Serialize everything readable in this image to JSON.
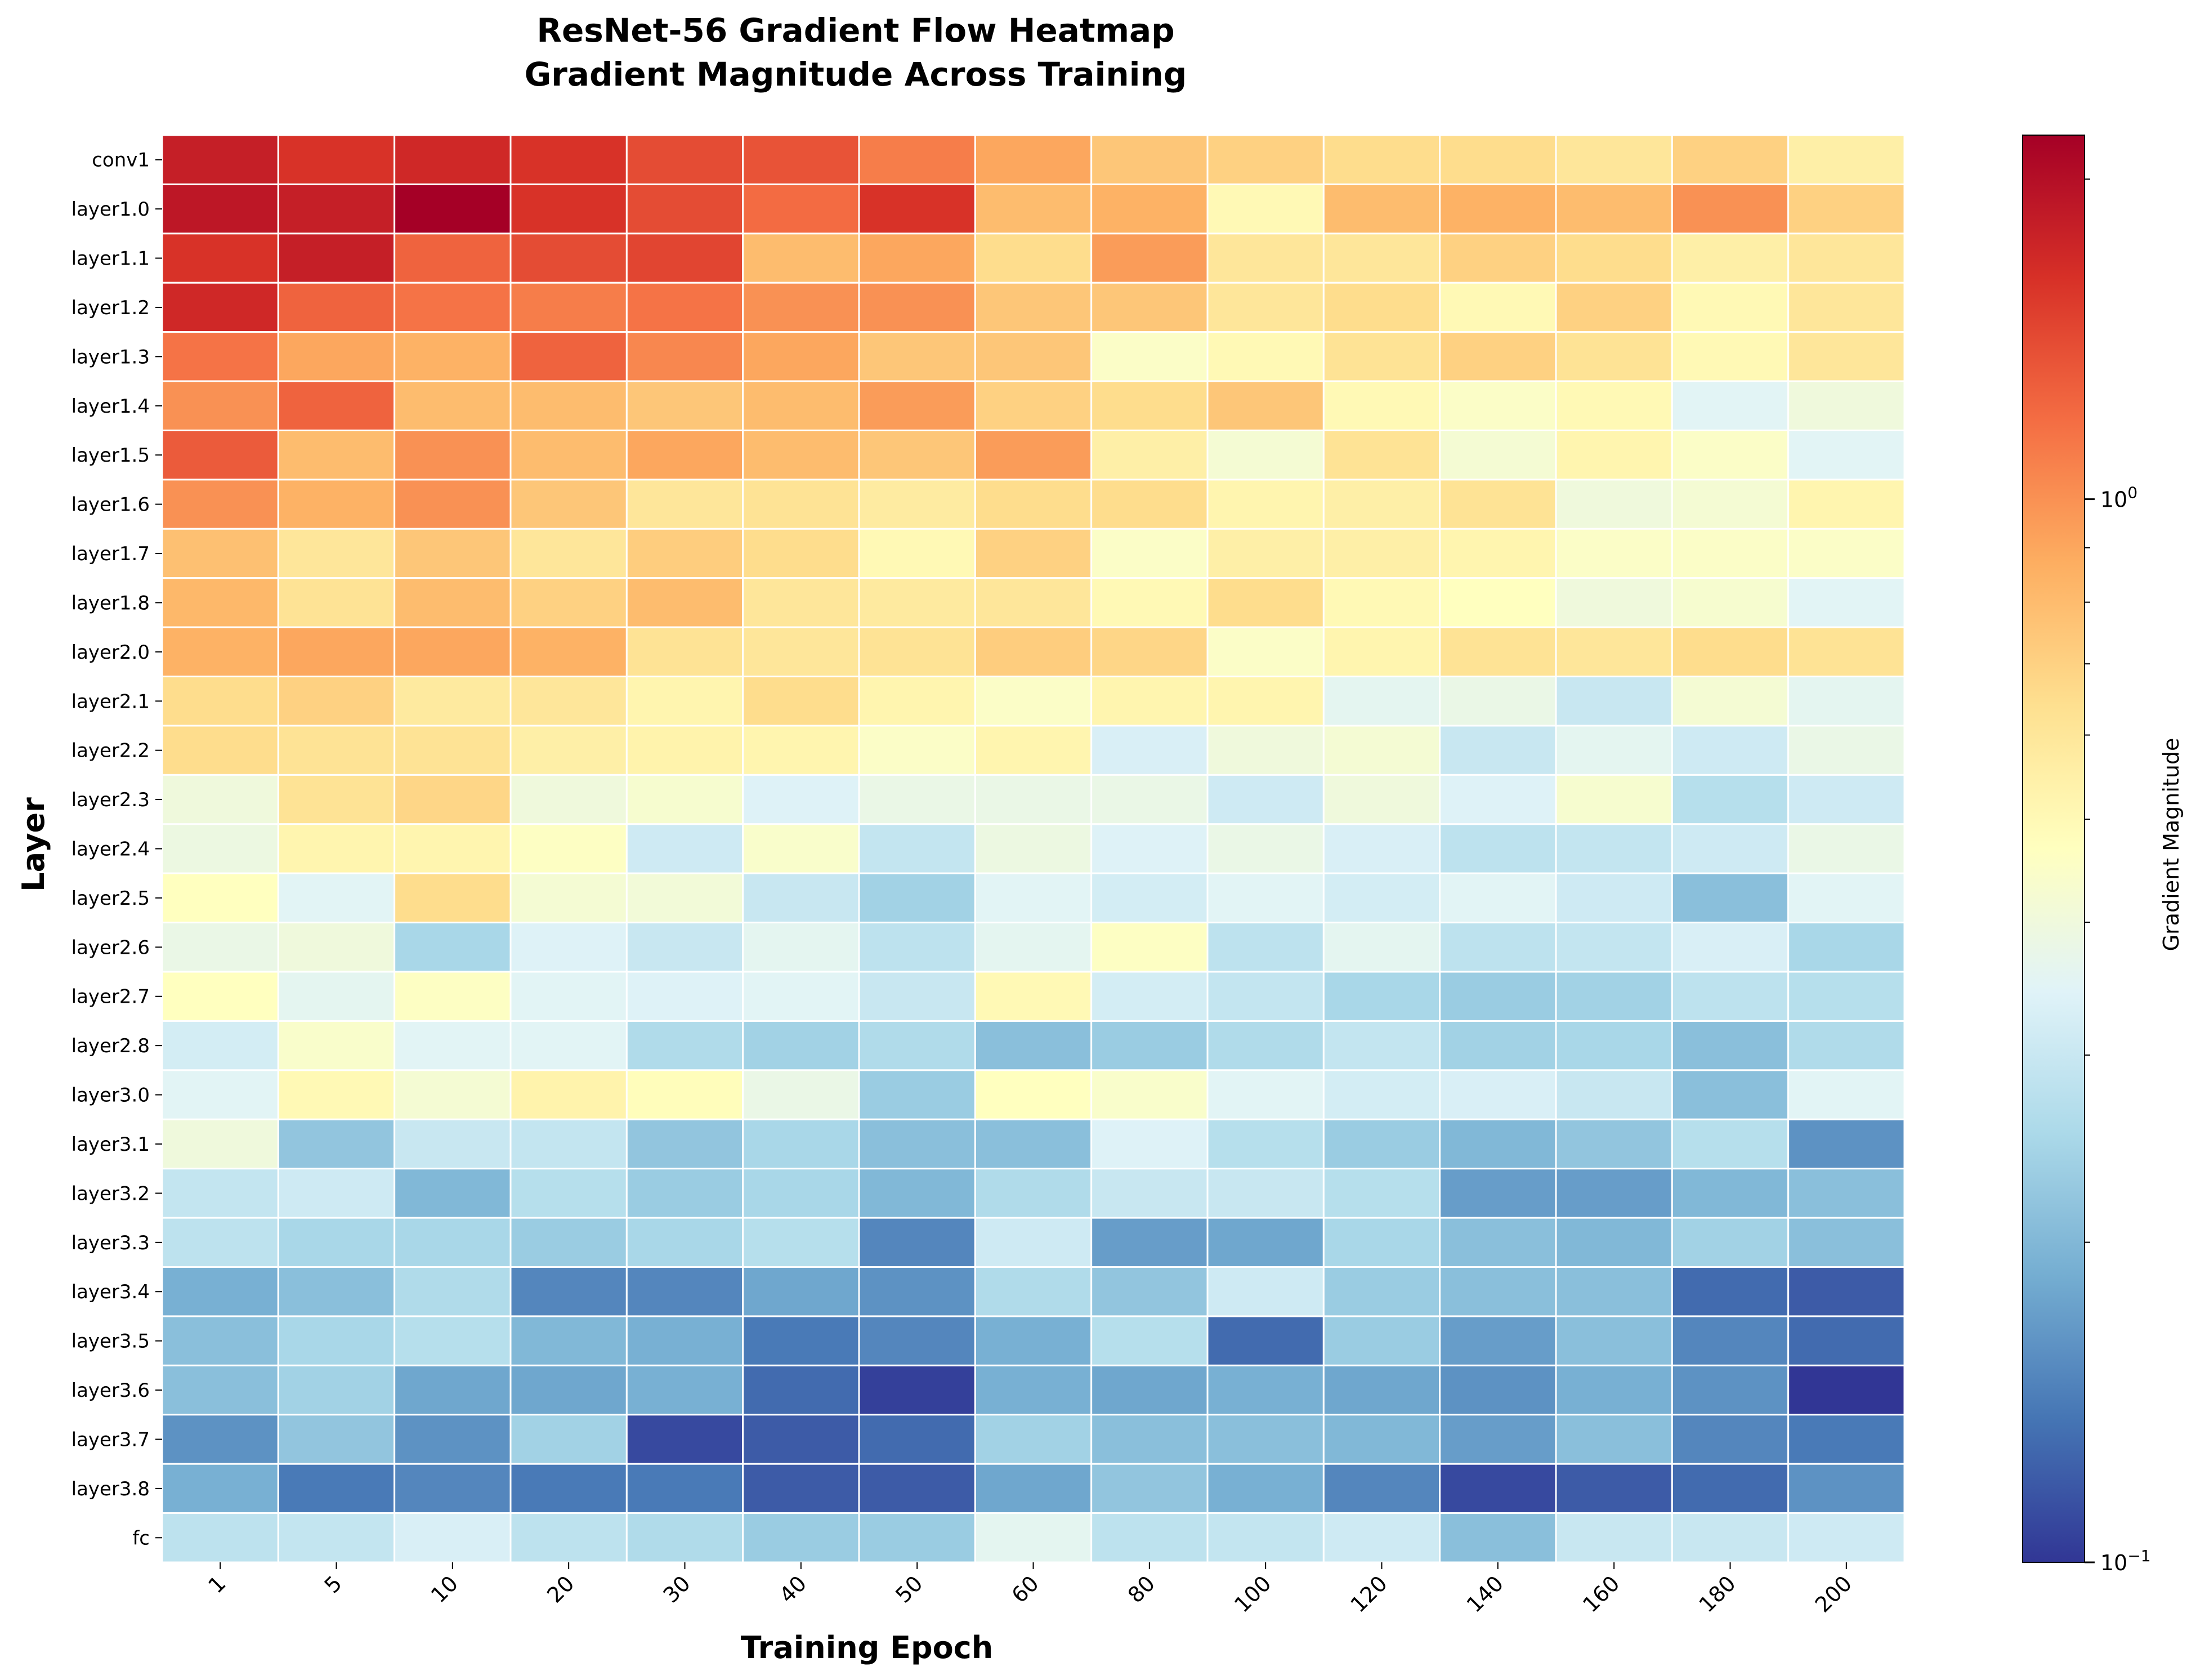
{
  "chart_data": {
    "type": "heatmap",
    "title": "ResNet-56 Gradient Flow Heatmap",
    "subtitle": "Gradient Magnitude Across Training",
    "xlabel": "Training Epoch",
    "ylabel": "Layer",
    "colorbar_label": "Gradient Magnitude",
    "colorbar_scale": "log",
    "colorbar_range": [
      0.1,
      2.2
    ],
    "colorbar_ticks": [
      {
        "value": 1.0,
        "label": "10",
        "exp": "0"
      },
      {
        "value": 0.1,
        "label": "10",
        "exp": "−1"
      }
    ],
    "colormap": "RdYlBu_r",
    "grid": false,
    "x": [
      "1",
      "5",
      "10",
      "20",
      "30",
      "40",
      "50",
      "60",
      "80",
      "100",
      "120",
      "140",
      "160",
      "180",
      "200"
    ],
    "y": [
      "conv1",
      "layer1.0",
      "layer1.1",
      "layer1.2",
      "layer1.3",
      "layer1.4",
      "layer1.5",
      "layer1.6",
      "layer1.7",
      "layer1.8",
      "layer2.0",
      "layer2.1",
      "layer2.2",
      "layer2.3",
      "layer2.4",
      "layer2.5",
      "layer2.6",
      "layer2.7",
      "layer2.8",
      "layer3.0",
      "layer3.1",
      "layer3.2",
      "layer3.3",
      "layer3.4",
      "layer3.5",
      "layer3.6",
      "layer3.7",
      "layer3.8",
      "fc"
    ],
    "values": [
      [
        1.8,
        1.6,
        1.7,
        1.6,
        1.4,
        1.35,
        1.1,
        0.9,
        0.75,
        0.7,
        0.65,
        0.65,
        0.6,
        0.7,
        0.55
      ],
      [
        1.9,
        1.8,
        2.2,
        1.6,
        1.4,
        1.2,
        1.6,
        0.8,
        0.85,
        0.5,
        0.8,
        0.85,
        0.8,
        1.0,
        0.7
      ],
      [
        1.6,
        1.8,
        1.25,
        1.4,
        1.45,
        0.8,
        0.9,
        0.65,
        0.95,
        0.6,
        0.6,
        0.7,
        0.65,
        0.55,
        0.6
      ],
      [
        1.7,
        1.25,
        1.15,
        1.1,
        1.15,
        1.0,
        1.0,
        0.75,
        0.75,
        0.6,
        0.65,
        0.5,
        0.7,
        0.5,
        0.6
      ],
      [
        1.15,
        0.9,
        0.85,
        1.25,
        1.05,
        0.9,
        0.75,
        0.75,
        0.45,
        0.5,
        0.62,
        0.7,
        0.62,
        0.5,
        0.6
      ],
      [
        1.0,
        1.25,
        0.8,
        0.8,
        0.75,
        0.8,
        0.95,
        0.7,
        0.65,
        0.75,
        0.5,
        0.45,
        0.5,
        0.35,
        0.4
      ],
      [
        1.3,
        0.8,
        1.0,
        0.8,
        0.9,
        0.8,
        0.75,
        0.95,
        0.55,
        0.42,
        0.62,
        0.42,
        0.52,
        0.45,
        0.35
      ],
      [
        1.0,
        0.85,
        1.0,
        0.75,
        0.6,
        0.62,
        0.57,
        0.65,
        0.65,
        0.52,
        0.55,
        0.62,
        0.4,
        0.42,
        0.52
      ],
      [
        0.78,
        0.6,
        0.75,
        0.6,
        0.72,
        0.65,
        0.5,
        0.7,
        0.45,
        0.55,
        0.55,
        0.52,
        0.45,
        0.45,
        0.45
      ],
      [
        0.82,
        0.62,
        0.8,
        0.7,
        0.8,
        0.6,
        0.58,
        0.6,
        0.5,
        0.65,
        0.5,
        0.47,
        0.4,
        0.43,
        0.35
      ],
      [
        0.85,
        0.9,
        0.9,
        0.85,
        0.62,
        0.6,
        0.62,
        0.72,
        0.68,
        0.45,
        0.52,
        0.62,
        0.6,
        0.65,
        0.62
      ],
      [
        0.65,
        0.7,
        0.58,
        0.6,
        0.52,
        0.65,
        0.52,
        0.45,
        0.52,
        0.52,
        0.36,
        0.38,
        0.3,
        0.42,
        0.36
      ],
      [
        0.65,
        0.62,
        0.62,
        0.55,
        0.53,
        0.52,
        0.45,
        0.52,
        0.33,
        0.4,
        0.42,
        0.3,
        0.36,
        0.31,
        0.38
      ],
      [
        0.4,
        0.62,
        0.68,
        0.4,
        0.43,
        0.34,
        0.38,
        0.38,
        0.38,
        0.31,
        0.4,
        0.34,
        0.43,
        0.27,
        0.31
      ],
      [
        0.39,
        0.52,
        0.52,
        0.46,
        0.31,
        0.44,
        0.29,
        0.39,
        0.34,
        0.38,
        0.33,
        0.28,
        0.29,
        0.31,
        0.38
      ],
      [
        0.47,
        0.35,
        0.65,
        0.42,
        0.41,
        0.3,
        0.24,
        0.35,
        0.32,
        0.35,
        0.32,
        0.35,
        0.31,
        0.21,
        0.35
      ],
      [
        0.38,
        0.4,
        0.25,
        0.34,
        0.3,
        0.36,
        0.28,
        0.36,
        0.46,
        0.28,
        0.36,
        0.28,
        0.29,
        0.33,
        0.25
      ],
      [
        0.47,
        0.36,
        0.46,
        0.35,
        0.34,
        0.35,
        0.3,
        0.5,
        0.32,
        0.29,
        0.25,
        0.23,
        0.24,
        0.28,
        0.27
      ],
      [
        0.32,
        0.44,
        0.35,
        0.35,
        0.26,
        0.24,
        0.26,
        0.21,
        0.23,
        0.26,
        0.29,
        0.24,
        0.25,
        0.21,
        0.26
      ],
      [
        0.35,
        0.5,
        0.42,
        0.53,
        0.48,
        0.38,
        0.23,
        0.47,
        0.44,
        0.35,
        0.32,
        0.33,
        0.3,
        0.21,
        0.35
      ],
      [
        0.4,
        0.22,
        0.3,
        0.29,
        0.22,
        0.25,
        0.21,
        0.21,
        0.34,
        0.27,
        0.23,
        0.2,
        0.22,
        0.27,
        0.16
      ],
      [
        0.29,
        0.31,
        0.2,
        0.27,
        0.23,
        0.25,
        0.2,
        0.26,
        0.3,
        0.3,
        0.27,
        0.17,
        0.17,
        0.2,
        0.21
      ],
      [
        0.28,
        0.25,
        0.25,
        0.23,
        0.25,
        0.27,
        0.15,
        0.31,
        0.17,
        0.18,
        0.25,
        0.21,
        0.2,
        0.24,
        0.21
      ],
      [
        0.19,
        0.21,
        0.26,
        0.15,
        0.15,
        0.18,
        0.16,
        0.26,
        0.22,
        0.31,
        0.23,
        0.21,
        0.21,
        0.13,
        0.12
      ],
      [
        0.21,
        0.25,
        0.27,
        0.2,
        0.19,
        0.14,
        0.15,
        0.19,
        0.27,
        0.13,
        0.23,
        0.17,
        0.21,
        0.15,
        0.13
      ],
      [
        0.21,
        0.24,
        0.18,
        0.18,
        0.19,
        0.13,
        0.105,
        0.19,
        0.18,
        0.19,
        0.18,
        0.16,
        0.19,
        0.16,
        0.1
      ],
      [
        0.16,
        0.22,
        0.16,
        0.24,
        0.11,
        0.12,
        0.13,
        0.24,
        0.21,
        0.21,
        0.2,
        0.17,
        0.21,
        0.15,
        0.14
      ],
      [
        0.19,
        0.14,
        0.15,
        0.14,
        0.14,
        0.12,
        0.12,
        0.18,
        0.22,
        0.19,
        0.15,
        0.11,
        0.12,
        0.13,
        0.16
      ],
      [
        0.28,
        0.29,
        0.33,
        0.28,
        0.26,
        0.23,
        0.23,
        0.36,
        0.28,
        0.29,
        0.31,
        0.21,
        0.3,
        0.3,
        0.31
      ]
    ]
  }
}
